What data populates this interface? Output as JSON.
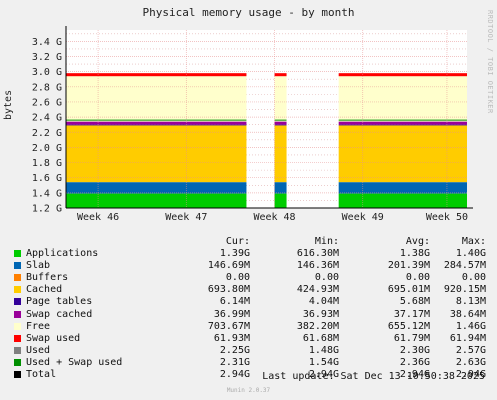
{
  "title": "Physical memory usage - by month",
  "brand_text": "RRDTOOL / TOBI OETIKER",
  "last_update": "Last update: Sat Dec 13 10:50:38 2025",
  "footer": "Munin 2.0.37",
  "colors": {
    "background": "#f0f0f0",
    "plot_bg": "#ffffff",
    "grid_major": "#e89090",
    "grid_minor": "#e0b0b0"
  },
  "chart_data": {
    "type": "area",
    "ylabel": "bytes",
    "y_ticks": [
      "1.2 G",
      "1.4 G",
      "1.6 G",
      "1.8 G",
      "2.0 G",
      "2.2 G",
      "2.4 G",
      "2.6 G",
      "2.8 G",
      "3.0 G",
      "3.2 G",
      "3.4 G"
    ],
    "ylim": [
      1.2,
      3.55
    ],
    "x_ticks": [
      "Week 46",
      "Week 47",
      "Week 48",
      "Week 49",
      "Week 50"
    ],
    "xlim": [
      0,
      100
    ],
    "x_tick_positions": [
      8,
      30,
      52,
      74,
      95
    ],
    "data_intervals": [
      [
        0,
        45
      ],
      [
        52,
        55
      ],
      [
        68,
        100
      ]
    ],
    "stack_top_values": {
      "applications": 1.39,
      "slab": 1.54,
      "buffers": 1.54,
      "cached": 2.29,
      "page_tables": 2.3,
      "swap_cached": 2.34,
      "free": 2.94,
      "swap_used": 2.98,
      "used_swap_line": 2.36
    },
    "legend_headers": [
      "Cur:",
      "Min:",
      "Avg:",
      "Max:"
    ],
    "series": [
      {
        "name": "Applications",
        "color": "#00cc00",
        "cur": "1.39G",
        "min": "616.30M",
        "avg": "1.38G",
        "max": "1.40G"
      },
      {
        "name": "Slab",
        "color": "#0066b3",
        "cur": "146.69M",
        "min": "146.36M",
        "avg": "201.39M",
        "max": "284.57M"
      },
      {
        "name": "Buffers",
        "color": "#ff8000",
        "cur": "0.00",
        "min": "0.00",
        "avg": "0.00",
        "max": "0.00"
      },
      {
        "name": "Cached",
        "color": "#ffcc00",
        "cur": "693.80M",
        "min": "424.93M",
        "avg": "695.01M",
        "max": "920.15M"
      },
      {
        "name": "Page tables",
        "color": "#330099",
        "cur": "6.14M",
        "min": "4.04M",
        "avg": "5.68M",
        "max": "8.13M"
      },
      {
        "name": "Swap cached",
        "color": "#990099",
        "cur": "36.99M",
        "min": "36.93M",
        "avg": "37.17M",
        "max": "38.64M"
      },
      {
        "name": "Free",
        "color": "#ffffcc",
        "cur": "703.67M",
        "min": "382.20M",
        "avg": "655.12M",
        "max": "1.46G"
      },
      {
        "name": "Swap used",
        "color": "#ff0000",
        "cur": "61.93M",
        "min": "61.68M",
        "avg": "61.79M",
        "max": "61.94M"
      },
      {
        "name": "Used",
        "color": "#808080",
        "cur": "2.25G",
        "min": "1.48G",
        "avg": "2.30G",
        "max": "2.57G"
      },
      {
        "name": "Used + Swap used",
        "color": "#008f00",
        "cur": "2.31G",
        "min": "1.54G",
        "avg": "2.36G",
        "max": "2.63G"
      },
      {
        "name": "Total",
        "color": "#000000",
        "cur": "2.94G",
        "min": "2.94G",
        "avg": "2.94G",
        "max": "2.94G"
      }
    ]
  }
}
